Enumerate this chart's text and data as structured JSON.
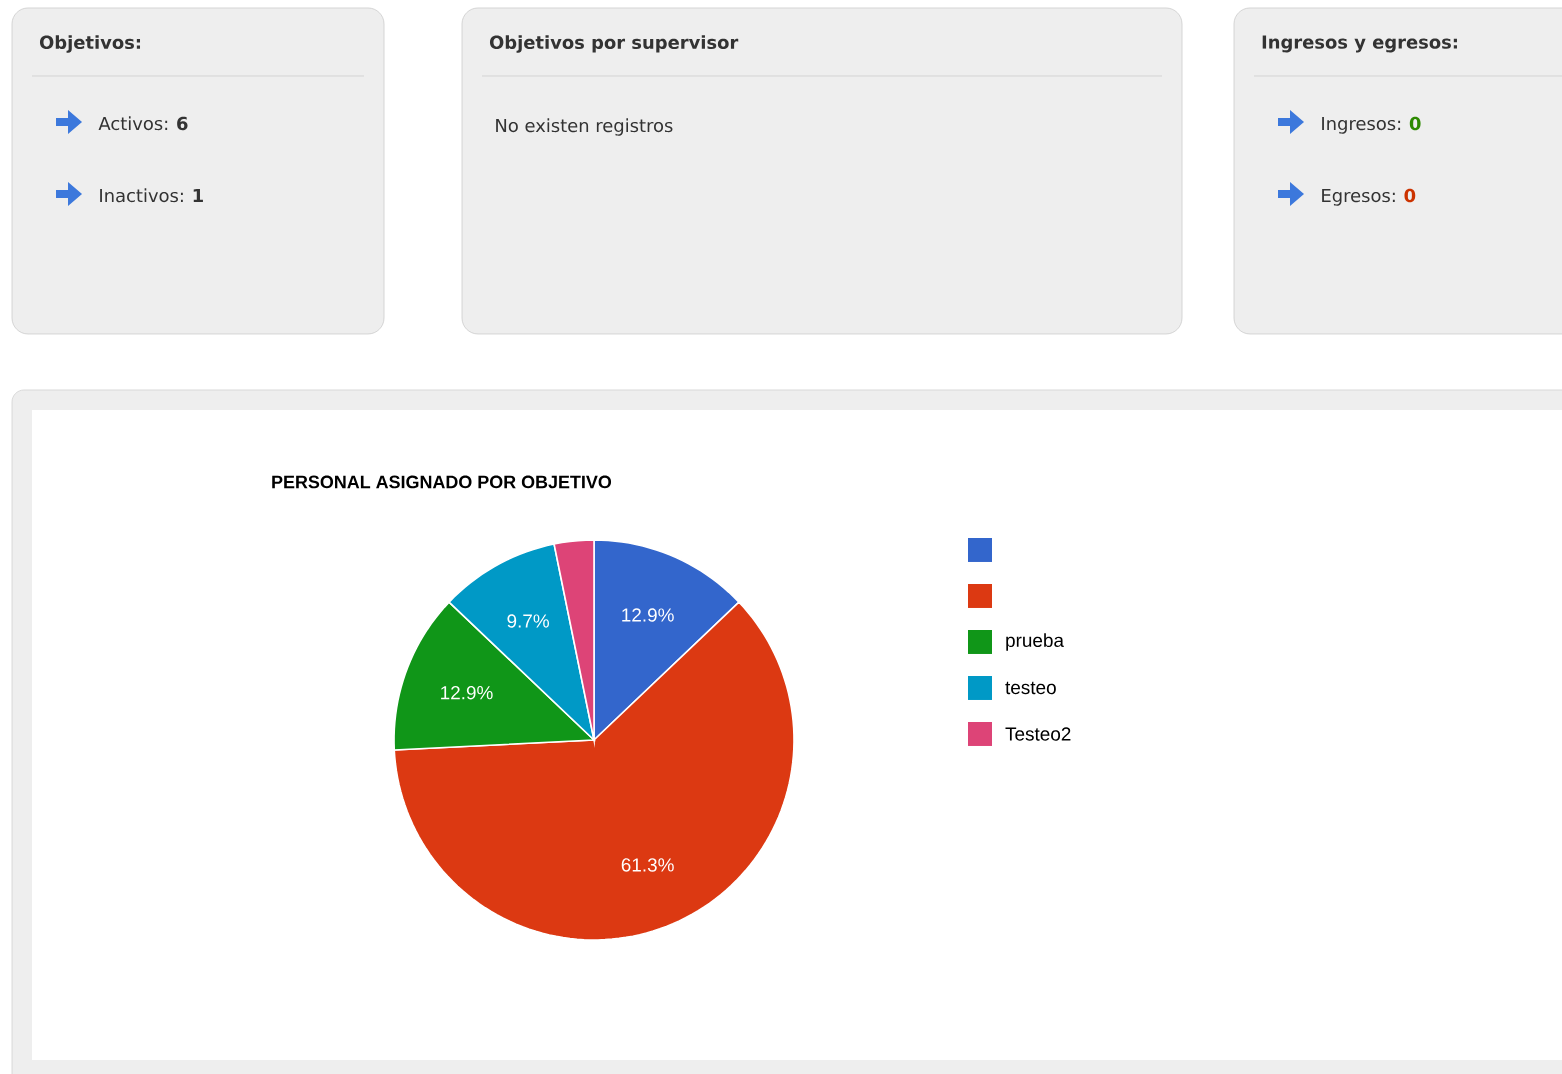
{
  "chart_data": [
    {
      "type": "other",
      "title": "Objetivos:",
      "annotations": [
        "Activos:",
        "6",
        "Inactivos:",
        "1"
      ],
      "colors": [
        "#333333",
        "#333333",
        "#333333",
        "#333333"
      ]
    },
    {
      "type": "other",
      "title": "Objetivos por supervisor",
      "annotations": [
        "No existen registros"
      ]
    },
    {
      "type": "other",
      "title": "Ingresos y egresos:",
      "annotations": [
        "Ingresos:",
        "0",
        "Egresos:",
        "0"
      ],
      "colors": [
        "#333333",
        "#2d8a00",
        "#333333",
        "#cc3300"
      ]
    },
    {
      "type": "pie",
      "title": "PERSONAL ASIGNADO POR OBJETIVO",
      "categories": [
        null,
        null,
        "prueba",
        "testeo",
        "Testeo2"
      ],
      "values": [
        12.9,
        61.3,
        12.9,
        9.7,
        3.2
      ],
      "colors": [
        "#3366cc",
        "#dc3912",
        "#109618",
        "#0099c6",
        "#dd4477"
      ],
      "value_labels": [
        "12.9%",
        "61.3%",
        "12.9%",
        "9.7%",
        null
      ],
      "legend": "right"
    }
  ]
}
